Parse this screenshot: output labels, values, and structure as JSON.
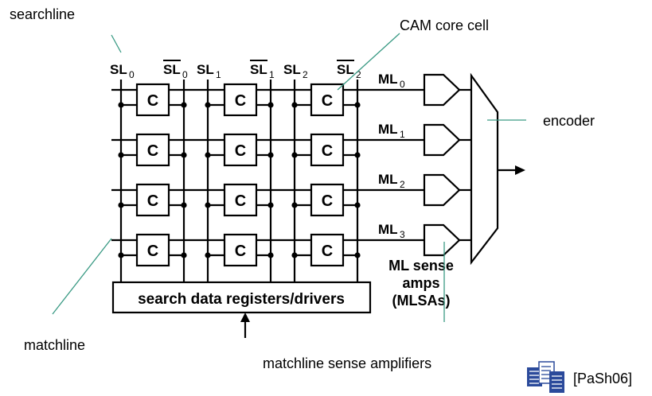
{
  "annotations": {
    "searchline": "searchline",
    "cam_core_cell": "CAM core cell",
    "encoder": "encoder",
    "matchline": "matchline",
    "matchline_sense_amplifiers": "matchline sense amplifiers",
    "citation": "[PaSh06]"
  },
  "searchlines": [
    {
      "label": "SL",
      "sub": "0"
    },
    {
      "label": "SL",
      "sub": "0",
      "bar": true
    },
    {
      "label": "SL",
      "sub": "1"
    },
    {
      "label": "SL",
      "sub": "1",
      "bar": true
    },
    {
      "label": "SL",
      "sub": "2"
    },
    {
      "label": "SL",
      "sub": "2",
      "bar": true
    }
  ],
  "matchlines": [
    {
      "label": "ML",
      "sub": "0"
    },
    {
      "label": "ML",
      "sub": "1"
    },
    {
      "label": "ML",
      "sub": "2"
    },
    {
      "label": "ML",
      "sub": "3"
    }
  ],
  "cell_label": "C",
  "driver_box": "search data registers/drivers",
  "mlsa_label": [
    "ML sense",
    "amps",
    "(MLSAs)"
  ],
  "colors": {
    "leader": "#3a9a84",
    "icon": "#2b4a9b"
  },
  "icon": "document-stack-icon"
}
